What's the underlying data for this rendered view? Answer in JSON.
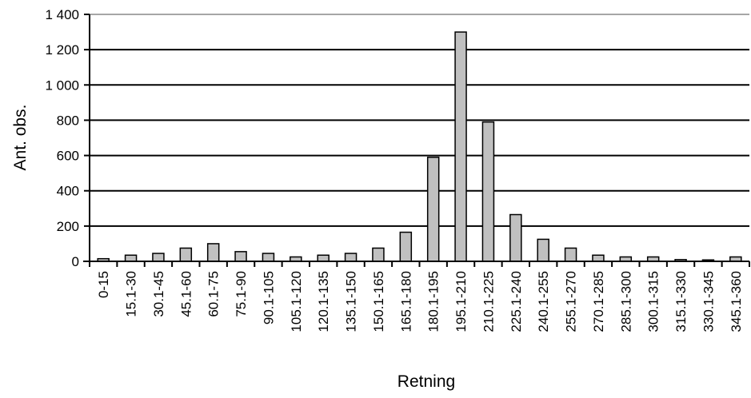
{
  "chart_data": {
    "type": "bar",
    "title": "",
    "xlabel": "Retning",
    "ylabel": "Ant. obs.",
    "ylim": [
      0,
      1400
    ],
    "yticks": [
      0,
      200,
      400,
      600,
      800,
      1000,
      1200,
      1400
    ],
    "ytick_labels": [
      "0",
      "200",
      "400",
      "600",
      "800",
      "1 000",
      "1 200",
      "1 400"
    ],
    "grid": true,
    "legend": "none",
    "categories": [
      "0-15",
      "15.1-30",
      "30.1-45",
      "45.1-60",
      "60.1-75",
      "75.1-90",
      "90.1-105",
      "105.1-120",
      "120.1-135",
      "135.1-150",
      "150.1-165",
      "165.1-180",
      "180.1-195",
      "195.1-210",
      "210.1-225",
      "225.1-240",
      "240.1-255",
      "255.1-270",
      "270.1-285",
      "285.1-300",
      "300.1-315",
      "315.1-330",
      "330.1-345",
      "345.1-360"
    ],
    "values": [
      15,
      35,
      45,
      75,
      100,
      55,
      45,
      25,
      35,
      45,
      75,
      165,
      590,
      1300,
      790,
      265,
      125,
      75,
      35,
      25,
      25,
      10,
      8,
      25
    ],
    "colors": {
      "bar_fill": "#c0c0c0",
      "bar_stroke": "#000000",
      "gridline": "#000000",
      "top_line": "#888888"
    }
  }
}
